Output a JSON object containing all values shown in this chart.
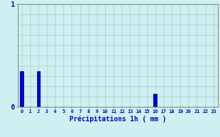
{
  "categories": [
    0,
    1,
    2,
    3,
    4,
    5,
    6,
    7,
    8,
    9,
    10,
    11,
    12,
    13,
    14,
    15,
    16,
    17,
    18,
    19,
    20,
    21,
    22,
    23
  ],
  "values": [
    0.35,
    0.0,
    0.35,
    0.0,
    0.0,
    0.0,
    0.0,
    0.0,
    0.0,
    0.0,
    0.0,
    0.0,
    0.0,
    0.0,
    0.0,
    0.0,
    0.13,
    0.0,
    0.0,
    0.0,
    0.0,
    0.0,
    0.0,
    0.0
  ],
  "bar_color": "#0000dd",
  "bar_edge_color": "#0000aa",
  "background_color": "#cff0f0",
  "grid_color_h": "#aacccc",
  "grid_color_v": "#aacccc",
  "xlabel": "Précipitations 1h ( mm )",
  "ylim": [
    0,
    1.0
  ],
  "yticks": [
    0,
    1
  ],
  "tick_color": "#0000cc",
  "xlabel_color": "#0000cc",
  "spine_color": "#888888",
  "bar_width": 0.4
}
